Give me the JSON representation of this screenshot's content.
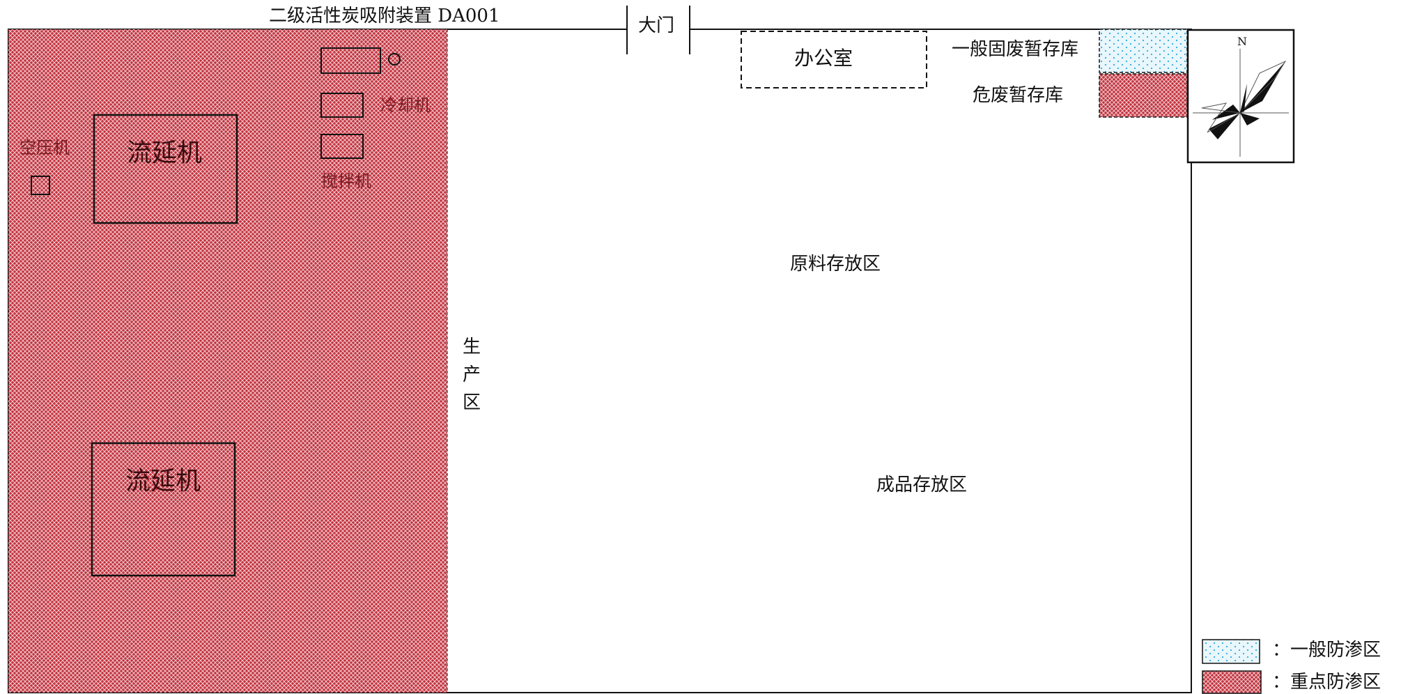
{
  "labels": {
    "adsorber": "二级活性炭吸附装置 DA001",
    "gate": "大门",
    "office": "办公室",
    "general_waste": "一般固废暂存库",
    "hazardous_waste": "危废暂存库",
    "air_compressor": "空压机",
    "cooler": "冷却机",
    "mixer": "搅拌机",
    "casting_machine_1": "流延机",
    "casting_machine_2": "流延机",
    "raw_material_area": "原料存放区",
    "product_area": "成品存放区",
    "production_area": [
      "生",
      "产",
      "区"
    ],
    "compass_north": "N"
  },
  "legend": [
    {
      "label": "：一般防渗区",
      "pattern": "dots"
    },
    {
      "label": "：重点防渗区",
      "pattern": "crosshatch-red"
    }
  ],
  "colors": {
    "key_zone_fill": "#c0323e",
    "general_zone_fill": "#dff3fb",
    "dot_color": "#2aa9d8",
    "line": "#111111"
  }
}
